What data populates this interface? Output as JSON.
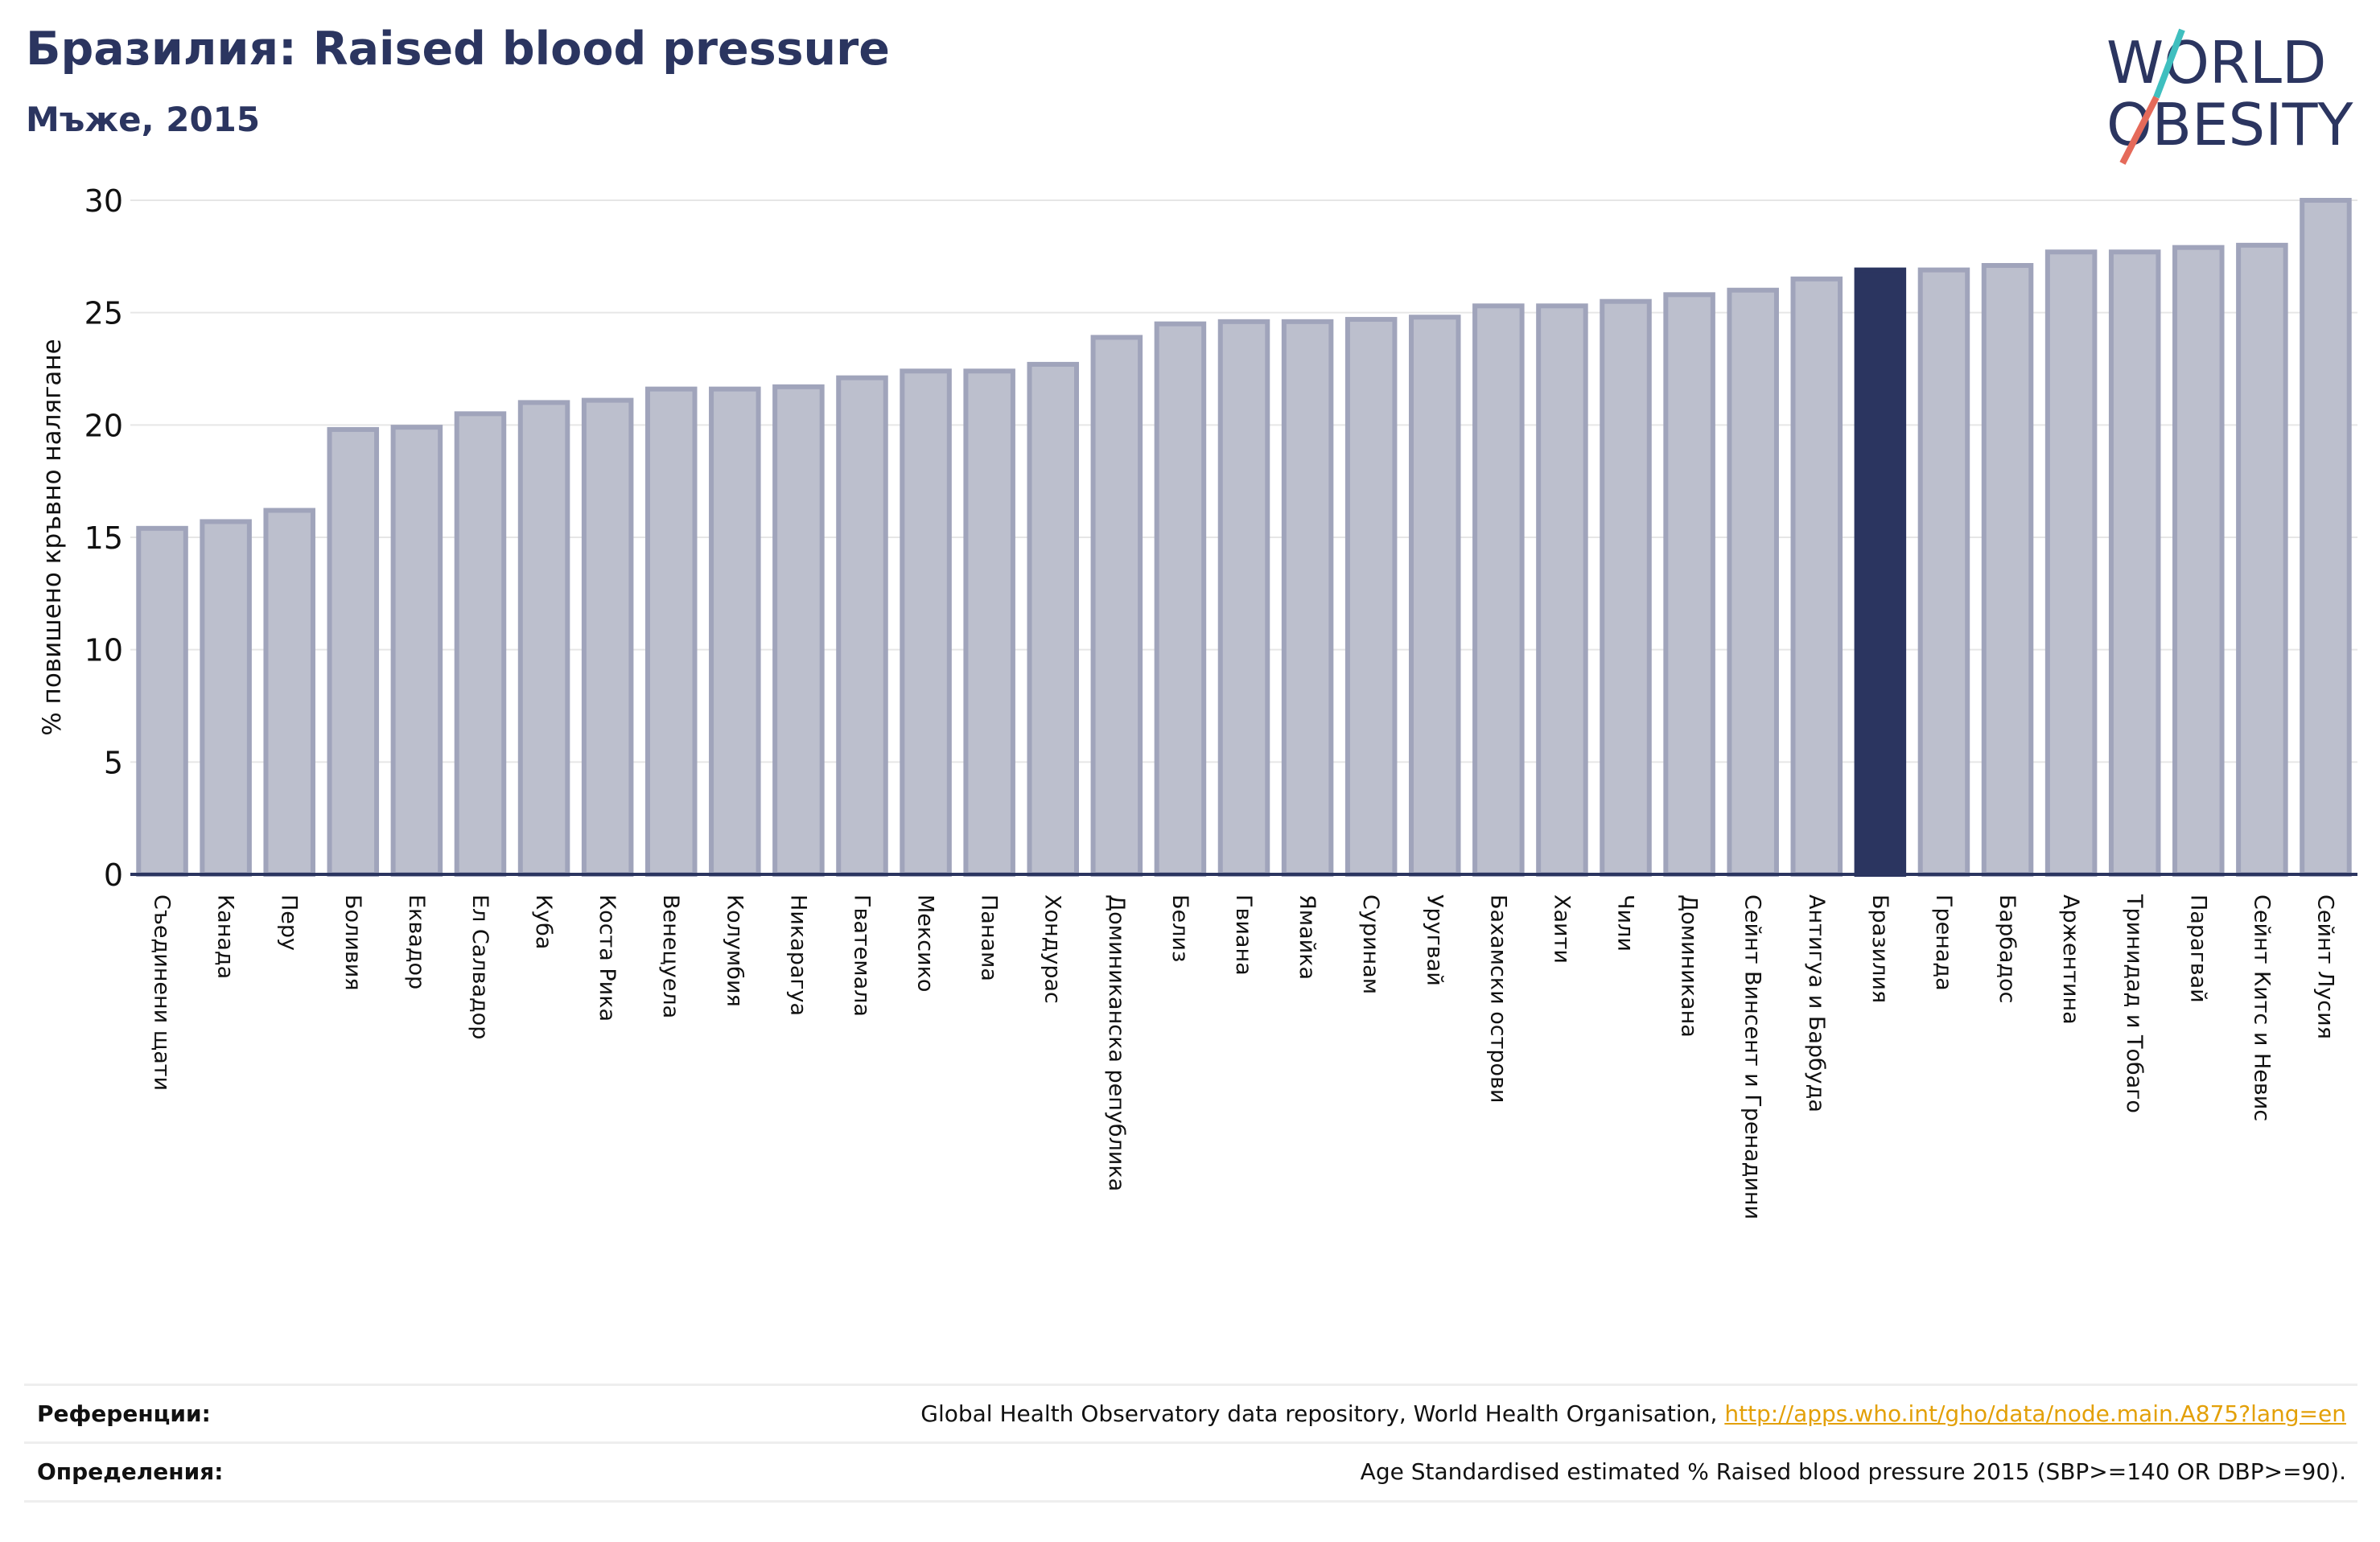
{
  "header": {
    "title": "Бразилия: Raised blood pressure",
    "subtitle": "Мъже, 2015"
  },
  "logo": {
    "line1": "WORLD",
    "line2": "OBESITY",
    "colors": {
      "text": "#2b3560",
      "slash_top": "#3fbfbf",
      "slash_bottom": "#e56a5a"
    }
  },
  "colors": {
    "bar_fill": "#bcbfcd",
    "bar_stroke": "#a0a4bb",
    "highlight": "#2b3560",
    "grid": "#e6e6e6",
    "axis": "#2b3560",
    "link": "#e3a008"
  },
  "chart_data": {
    "type": "bar",
    "title": "",
    "xlabel": "",
    "ylabel": "% повишено кръвно налягане",
    "ylim": [
      0,
      30
    ],
    "yticks": [
      0,
      5,
      10,
      15,
      20,
      25,
      30
    ],
    "grid": true,
    "highlight": "Бразилия",
    "categories": [
      "Съединени щати",
      "Канада",
      "Перу",
      "Боливия",
      "Еквадор",
      "Ел Салвадор",
      "Куба",
      "Коста Рика",
      "Венецуела",
      "Колумбия",
      "Никарагуа",
      "Гватемала",
      "Мексико",
      "Панама",
      "Хондурас",
      "Доминиканска република",
      "Белиз",
      "Гвиана",
      "Ямайка",
      "Суринам",
      "Уругвай",
      "Бахамски острови",
      "Хаити",
      "Чили",
      "Доминикана",
      "Сейнт Винсент и Гренадини",
      "Антигуа и Барбуда",
      "Бразилия",
      "Гренада",
      "Барбадос",
      "Аржентина",
      "Тринидад и Тобаго",
      "Парагвай",
      "Сейнт Китс и Невис",
      "Сейнт Лусия"
    ],
    "values": [
      15.4,
      15.7,
      16.2,
      19.8,
      19.9,
      20.5,
      21.0,
      21.1,
      21.6,
      21.6,
      21.7,
      22.1,
      22.4,
      22.4,
      22.7,
      23.9,
      24.5,
      24.6,
      24.6,
      24.7,
      24.8,
      25.3,
      25.3,
      25.5,
      25.8,
      26.0,
      26.5,
      26.9,
      26.9,
      27.1,
      27.7,
      27.7,
      27.9,
      28.0,
      30.0
    ]
  },
  "references": {
    "label": "Референции:",
    "text": "Global Health Observatory data repository, World Health Organisation, ",
    "link": "http://apps.who.int/gho/data/node.main.A875?lang=en"
  },
  "definitions": {
    "label": "Определения:",
    "text": "Age Standardised estimated % Raised blood pressure 2015 (SBP>=140 OR DBP>=90)."
  }
}
